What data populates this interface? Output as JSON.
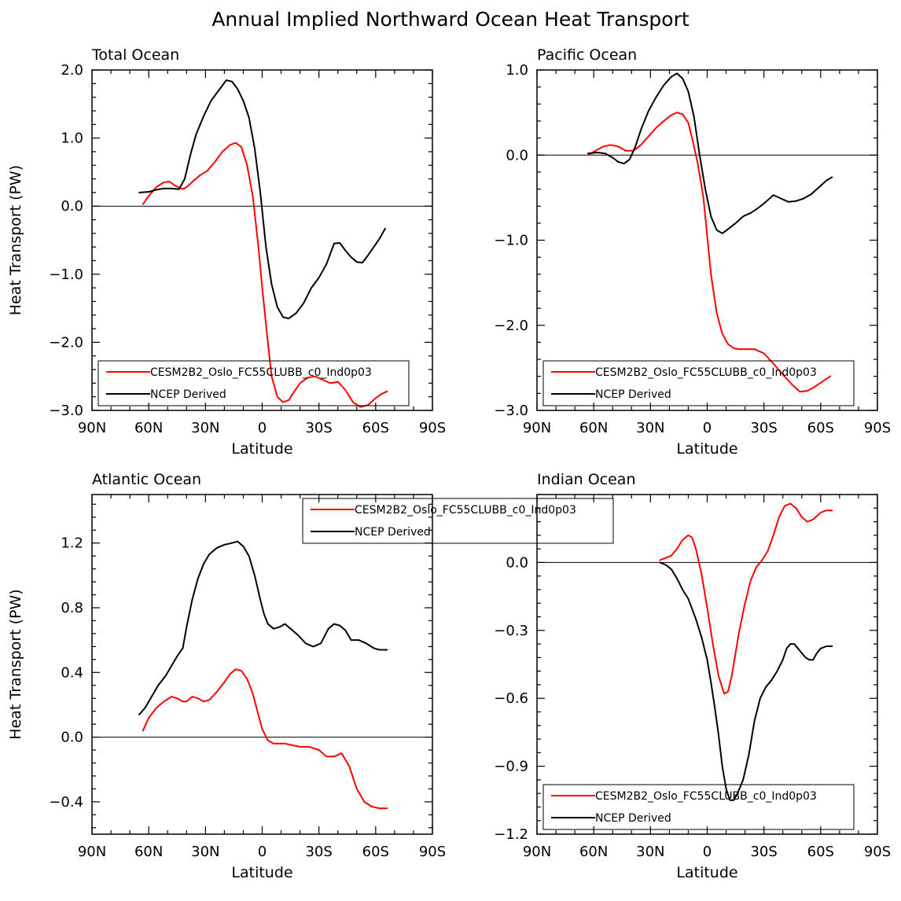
{
  "figure_title": "Annual Implied Northward Ocean Heat Transport",
  "colors": {
    "model": "#ff0000",
    "obs": "#000000"
  },
  "chart_data": [
    {
      "type": "line",
      "title": "Total Ocean",
      "xlabel": "Latitude",
      "ylabel": "Heat Transport (PW)",
      "xlim": [
        90,
        -90
      ],
      "ylim": [
        -3.0,
        2.0
      ],
      "xticks": [
        90,
        60,
        30,
        0,
        -30,
        -60,
        -90
      ],
      "xtick_labels": [
        "90N",
        "60N",
        "30N",
        "0",
        "30S",
        "60S",
        "90S"
      ],
      "yticks": [
        2.0,
        1.0,
        0.0,
        -1.0,
        -2.0,
        -3.0
      ],
      "ytick_labels": [
        "2.0",
        "1.0",
        "0.0",
        "−1.0",
        "−2.0",
        "−3.0"
      ],
      "legend_position": "bottom",
      "series": [
        {
          "name": "CESM2B2_Oslo_FC55CLUBB_c0_Ind0p03",
          "color": "#ff0000",
          "x": [
            63,
            60,
            56,
            52,
            49,
            46,
            42,
            40,
            36,
            33,
            29,
            25,
            21,
            17,
            14,
            11,
            8,
            5,
            2,
            0,
            -3,
            -5,
            -8,
            -11,
            -14,
            -17,
            -20,
            -24,
            -28,
            -32,
            -36,
            -40,
            -44,
            -48,
            -52,
            -56,
            -60,
            -63,
            -66
          ],
          "y": [
            0.03,
            0.15,
            0.28,
            0.35,
            0.36,
            0.3,
            0.25,
            0.28,
            0.38,
            0.45,
            0.52,
            0.65,
            0.8,
            0.9,
            0.93,
            0.87,
            0.6,
            0.15,
            -0.6,
            -1.2,
            -2.0,
            -2.5,
            -2.8,
            -2.88,
            -2.85,
            -2.72,
            -2.6,
            -2.52,
            -2.5,
            -2.55,
            -2.6,
            -2.58,
            -2.7,
            -2.88,
            -2.95,
            -2.92,
            -2.82,
            -2.76,
            -2.72
          ]
        },
        {
          "name": "NCEP Derived",
          "color": "#000000",
          "x": [
            65,
            60,
            56,
            52,
            48,
            44,
            41,
            38,
            35,
            31,
            27,
            23,
            19,
            16,
            13,
            10,
            7,
            4,
            1,
            -2,
            -5,
            -8,
            -11,
            -14,
            -18,
            -22,
            -26,
            -30,
            -34,
            -38,
            -41,
            -44,
            -47,
            -50,
            -53,
            -56,
            -59,
            -62,
            -65
          ],
          "y": [
            0.2,
            0.21,
            0.24,
            0.26,
            0.26,
            0.25,
            0.4,
            0.75,
            1.05,
            1.32,
            1.55,
            1.7,
            1.85,
            1.83,
            1.72,
            1.55,
            1.3,
            0.85,
            0.2,
            -0.6,
            -1.15,
            -1.48,
            -1.63,
            -1.65,
            -1.57,
            -1.42,
            -1.2,
            -1.05,
            -0.85,
            -0.55,
            -0.54,
            -0.65,
            -0.75,
            -0.82,
            -0.83,
            -0.72,
            -0.6,
            -0.48,
            -0.33
          ]
        }
      ]
    },
    {
      "type": "line",
      "title": "Pacific Ocean",
      "xlabel": "Latitude",
      "ylabel": "",
      "xlim": [
        90,
        -90
      ],
      "ylim": [
        -3.0,
        1.0
      ],
      "xticks": [
        90,
        60,
        30,
        0,
        -30,
        -60,
        -90
      ],
      "xtick_labels": [
        "90N",
        "60N",
        "30N",
        "0",
        "30S",
        "60S",
        "90S"
      ],
      "yticks": [
        1.0,
        0.0,
        -1.0,
        -2.0,
        -3.0
      ],
      "ytick_labels": [
        "1.0",
        "0.0",
        "−1.0",
        "−2.0",
        "−3.0"
      ],
      "legend_position": "bottom",
      "series": [
        {
          "name": "CESM2B2_Oslo_FC55CLUBB_c0_Ind0p03",
          "color": "#ff0000",
          "x": [
            63,
            59,
            55,
            51,
            47,
            43,
            39,
            35,
            31,
            27,
            23,
            19,
            16,
            13,
            10,
            8,
            5,
            2,
            0,
            -2,
            -5,
            -8,
            -11,
            -14,
            -17,
            -20,
            -25,
            -30,
            -35,
            -40,
            -45,
            -49,
            -53,
            -57,
            -61,
            -65
          ],
          "y": [
            0.0,
            0.05,
            0.1,
            0.12,
            0.1,
            0.05,
            0.05,
            0.12,
            0.22,
            0.32,
            0.4,
            0.47,
            0.5,
            0.48,
            0.38,
            0.2,
            -0.1,
            -0.5,
            -0.95,
            -1.4,
            -1.85,
            -2.1,
            -2.22,
            -2.27,
            -2.28,
            -2.28,
            -2.28,
            -2.33,
            -2.45,
            -2.58,
            -2.7,
            -2.78,
            -2.77,
            -2.72,
            -2.66,
            -2.6
          ]
        },
        {
          "name": "NCEP Derived",
          "color": "#000000",
          "x": [
            63,
            58,
            54,
            50,
            47,
            44,
            41,
            38,
            35,
            31,
            27,
            23,
            19,
            16,
            13,
            10,
            7,
            4,
            1,
            -2,
            -5,
            -8,
            -11,
            -15,
            -19,
            -23,
            -27,
            -31,
            -35,
            -39,
            -43,
            -47,
            -51,
            -55,
            -59,
            -63,
            -66
          ],
          "y": [
            0.02,
            0.03,
            0.02,
            -0.03,
            -0.08,
            -0.1,
            -0.05,
            0.1,
            0.3,
            0.52,
            0.68,
            0.82,
            0.92,
            0.96,
            0.9,
            0.75,
            0.45,
            0.0,
            -0.4,
            -0.72,
            -0.88,
            -0.92,
            -0.87,
            -0.8,
            -0.72,
            -0.68,
            -0.62,
            -0.55,
            -0.47,
            -0.51,
            -0.55,
            -0.54,
            -0.51,
            -0.46,
            -0.38,
            -0.3,
            -0.26
          ]
        }
      ]
    },
    {
      "type": "line",
      "title": "Atlantic Ocean",
      "xlabel": "Latitude",
      "ylabel": "Heat Transport (PW)",
      "xlim": [
        90,
        -90
      ],
      "ylim": [
        -0.6,
        1.5
      ],
      "xticks": [
        90,
        60,
        30,
        0,
        -30,
        -60,
        -90
      ],
      "xtick_labels": [
        "90N",
        "60N",
        "30N",
        "0",
        "30S",
        "60S",
        "90S"
      ],
      "yticks": [
        1.2,
        0.8,
        0.4,
        0.0,
        -0.4
      ],
      "ytick_labels": [
        "1.2",
        "0.8",
        "0.4",
        "0.0",
        "−0.4"
      ],
      "legend_position": "top-center",
      "series": [
        {
          "name": "CESM2B2_Oslo_FC55CLUBB_c0_Ind0p03",
          "color": "#ff0000",
          "x": [
            63,
            60,
            56,
            52,
            48,
            45,
            42,
            40,
            37,
            34,
            31,
            28,
            24,
            20,
            17,
            14,
            11,
            8,
            5,
            3,
            0,
            -3,
            -6,
            -9,
            -12,
            -16,
            -20,
            -25,
            -30,
            -34,
            -38,
            -42,
            -46,
            -50,
            -54,
            -58,
            -62,
            -66
          ],
          "y": [
            0.04,
            0.12,
            0.18,
            0.22,
            0.25,
            0.24,
            0.22,
            0.22,
            0.25,
            0.24,
            0.22,
            0.23,
            0.28,
            0.34,
            0.39,
            0.42,
            0.41,
            0.36,
            0.27,
            0.18,
            0.05,
            -0.02,
            -0.04,
            -0.04,
            -0.04,
            -0.05,
            -0.06,
            -0.06,
            -0.08,
            -0.12,
            -0.12,
            -0.1,
            -0.18,
            -0.32,
            -0.4,
            -0.43,
            -0.44,
            -0.44
          ]
        },
        {
          "name": "NCEP Derived",
          "color": "#000000",
          "x": [
            65,
            62,
            58,
            55,
            51,
            48,
            45,
            42,
            40,
            37,
            34,
            31,
            28,
            24,
            20,
            16,
            13,
            10,
            7,
            4,
            1,
            -1,
            -3,
            -6,
            -9,
            -12,
            -15,
            -19,
            -23,
            -27,
            -31,
            -35,
            -38,
            -41,
            -44,
            -47,
            -51,
            -55,
            -59,
            -62,
            -66
          ],
          "y": [
            0.14,
            0.18,
            0.26,
            0.32,
            0.38,
            0.44,
            0.5,
            0.55,
            0.68,
            0.85,
            0.98,
            1.07,
            1.13,
            1.17,
            1.19,
            1.2,
            1.21,
            1.18,
            1.12,
            1.0,
            0.85,
            0.76,
            0.7,
            0.67,
            0.68,
            0.7,
            0.67,
            0.63,
            0.58,
            0.56,
            0.58,
            0.67,
            0.7,
            0.69,
            0.66,
            0.6,
            0.6,
            0.58,
            0.55,
            0.54,
            0.54
          ]
        }
      ]
    },
    {
      "type": "line",
      "title": "Indian Ocean",
      "xlabel": "Latitude",
      "ylabel": "",
      "xlim": [
        90,
        -90
      ],
      "ylim": [
        -1.2,
        0.3
      ],
      "xticks": [
        90,
        60,
        30,
        0,
        -30,
        -60,
        -90
      ],
      "xtick_labels": [
        "90N",
        "60N",
        "30N",
        "0",
        "30S",
        "60S",
        "90S"
      ],
      "yticks": [
        0.0,
        -0.3,
        -0.6,
        -0.9,
        -1.2
      ],
      "ytick_labels": [
        "0.0",
        "−0.3",
        "−0.6",
        "−0.9",
        "−1.2"
      ],
      "legend_position": "bottom",
      "series": [
        {
          "name": "CESM2B2_Oslo_FC55CLUBB_c0_Ind0p03",
          "color": "#ff0000",
          "x": [
            25,
            22,
            19,
            16,
            13,
            10,
            8,
            6,
            3,
            0,
            -3,
            -6,
            -9,
            -11,
            -13,
            -15,
            -17,
            -20,
            -23,
            -26,
            -29,
            -32,
            -35,
            -38,
            -41,
            -44,
            -47,
            -50,
            -53,
            -56,
            -60,
            -63,
            -66
          ],
          "y": [
            0.01,
            0.02,
            0.03,
            0.06,
            0.1,
            0.12,
            0.11,
            0.06,
            -0.05,
            -0.2,
            -0.36,
            -0.5,
            -0.58,
            -0.57,
            -0.5,
            -0.4,
            -0.3,
            -0.18,
            -0.08,
            -0.02,
            0.01,
            0.05,
            0.12,
            0.2,
            0.25,
            0.26,
            0.24,
            0.2,
            0.18,
            0.19,
            0.22,
            0.23,
            0.23
          ]
        },
        {
          "name": "NCEP Derived",
          "color": "#000000",
          "x": [
            25,
            22,
            19,
            16,
            13,
            10,
            6,
            3,
            0,
            -2,
            -4,
            -6,
            -8,
            -10,
            -12,
            -14,
            -16,
            -19,
            -22,
            -25,
            -28,
            -31,
            -34,
            -37,
            -40,
            -42,
            -44,
            -46,
            -48,
            -50,
            -52,
            -54,
            -56,
            -58,
            -60,
            -63,
            -66
          ],
          "y": [
            0.0,
            -0.01,
            -0.03,
            -0.07,
            -0.12,
            -0.16,
            -0.25,
            -0.33,
            -0.43,
            -0.53,
            -0.64,
            -0.76,
            -0.9,
            -1.0,
            -1.05,
            -1.05,
            -1.02,
            -0.96,
            -0.85,
            -0.7,
            -0.6,
            -0.55,
            -0.52,
            -0.48,
            -0.43,
            -0.38,
            -0.36,
            -0.36,
            -0.38,
            -0.4,
            -0.42,
            -0.43,
            -0.43,
            -0.4,
            -0.38,
            -0.37,
            -0.37
          ]
        }
      ]
    }
  ]
}
